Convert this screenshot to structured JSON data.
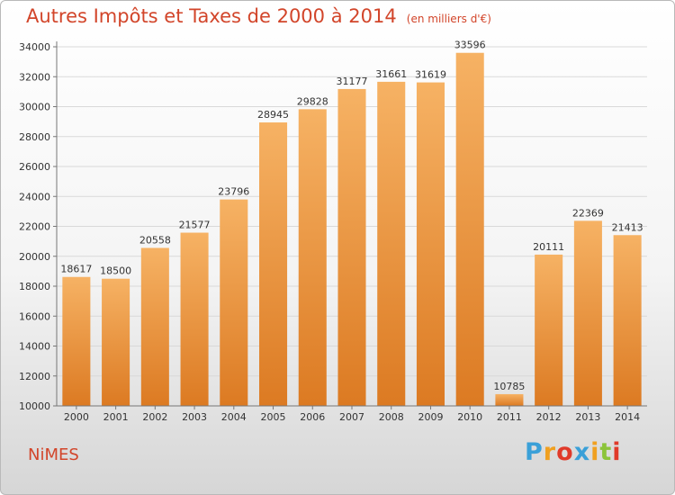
{
  "header": {
    "title": "Autres Impôts et Taxes de 2000 à 2014",
    "unit": "(en milliers d'€)"
  },
  "footer": {
    "city": "NiMES",
    "logo": {
      "letters": [
        "P",
        "r",
        "o",
        "x",
        "i",
        "t",
        "i"
      ],
      "colors": [
        "#3aa0d8",
        "#f0a020",
        "#e03a2a",
        "#3aa0d8",
        "#f0a020",
        "#8cc43a",
        "#e03a2a"
      ]
    }
  },
  "colors": {
    "bar_light": "#f6b264",
    "bar_dark": "#dc7a22",
    "text": "#d2452a"
  },
  "chart_data": {
    "type": "bar",
    "title": "Autres Impôts et Taxes de 2000 à 2014",
    "subtitle": "(en milliers d'€)",
    "categories": [
      "2000",
      "2001",
      "2002",
      "2003",
      "2004",
      "2005",
      "2006",
      "2007",
      "2008",
      "2009",
      "2010",
      "2011",
      "2012",
      "2013",
      "2014"
    ],
    "values": [
      18617,
      18500,
      20558,
      21577,
      23796,
      28945,
      29828,
      31177,
      31661,
      31619,
      33596,
      10785,
      20111,
      22369,
      21413
    ],
    "ylim": [
      10000,
      34000
    ],
    "yticks": [
      10000,
      12000,
      14000,
      16000,
      18000,
      20000,
      22000,
      24000,
      26000,
      28000,
      30000,
      32000,
      34000
    ],
    "grid": true
  }
}
